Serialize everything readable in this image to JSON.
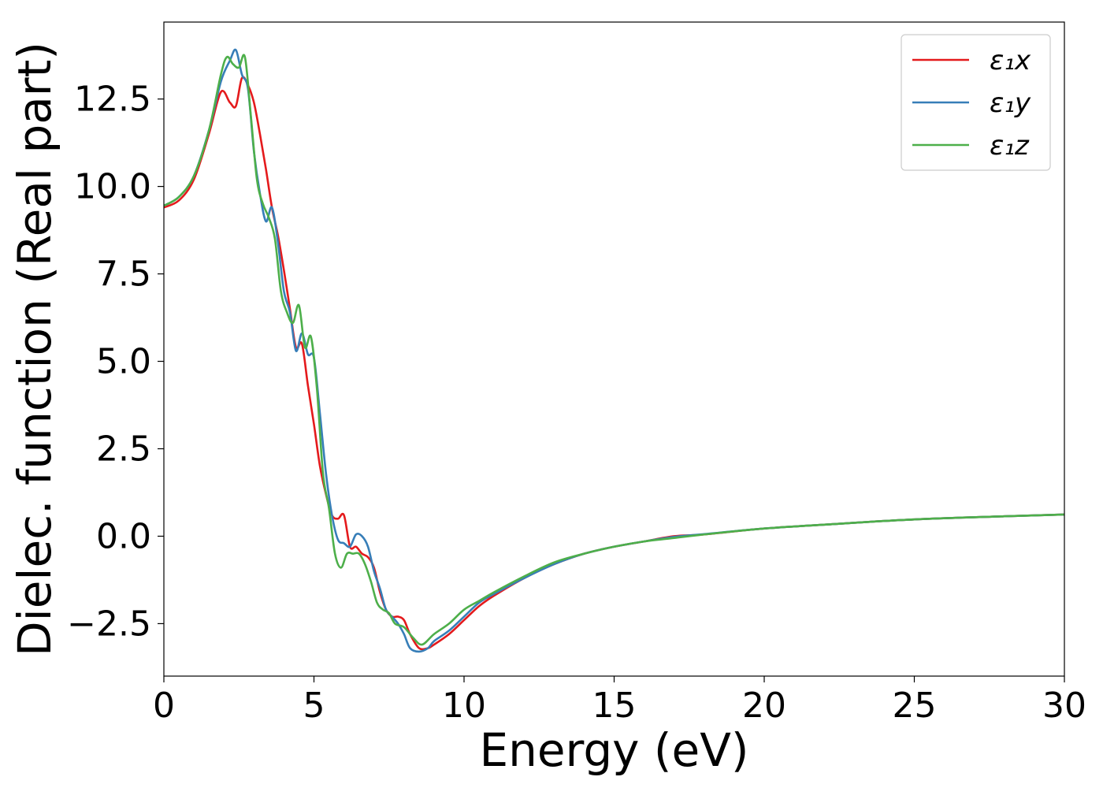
{
  "chart_data": {
    "type": "line",
    "xlabel": "Energy (eV)",
    "ylabel": "Dielec. function (Real part)",
    "xlim": [
      0,
      30
    ],
    "ylim": [
      -4.0,
      14.7
    ],
    "xticks": [
      0,
      5,
      10,
      15,
      20,
      25,
      30
    ],
    "yticks": [
      -2.5,
      0.0,
      2.5,
      5.0,
      7.5,
      10.0,
      12.5
    ],
    "xtick_labels": [
      "0",
      "5",
      "10",
      "15",
      "20",
      "25",
      "30"
    ],
    "ytick_labels": [
      "−2.5",
      "0.0",
      "2.5",
      "5.0",
      "7.5",
      "10.0",
      "12.5"
    ],
    "grid": false,
    "legend_position": "top-right",
    "series": [
      {
        "name": "ε₁x",
        "color": "#e41a1c",
        "x": [
          0,
          0.5,
          1.0,
          1.5,
          1.9,
          2.2,
          2.4,
          2.6,
          2.8,
          3.0,
          3.2,
          3.4,
          3.6,
          3.8,
          4.0,
          4.2,
          4.4,
          4.6,
          4.8,
          5.0,
          5.2,
          5.4,
          5.6,
          5.8,
          6.0,
          6.2,
          6.4,
          6.6,
          6.8,
          7.0,
          7.2,
          7.4,
          7.6,
          7.8,
          8.0,
          8.2,
          8.5,
          8.8,
          9.0,
          9.5,
          10.0,
          10.5,
          11.0,
          12.0,
          13.0,
          14.0,
          15.0,
          16.0,
          17.0,
          18.0,
          20.0,
          22.0,
          25.0,
          28.0,
          30.0
        ],
        "y": [
          9.4,
          9.6,
          10.2,
          11.5,
          12.7,
          12.4,
          12.3,
          13.1,
          12.9,
          12.4,
          11.5,
          10.5,
          9.4,
          8.6,
          7.6,
          6.5,
          5.4,
          5.5,
          4.3,
          3.2,
          2.0,
          1.2,
          0.6,
          0.5,
          0.6,
          -0.3,
          -0.3,
          -0.5,
          -0.6,
          -0.9,
          -1.6,
          -2.1,
          -2.3,
          -2.3,
          -2.4,
          -2.8,
          -3.2,
          -3.2,
          -3.1,
          -2.8,
          -2.4,
          -2.0,
          -1.7,
          -1.2,
          -0.8,
          -0.5,
          -0.3,
          -0.15,
          0.0,
          0.05,
          0.22,
          0.33,
          0.48,
          0.57,
          0.62
        ]
      },
      {
        "name": "ε₁y",
        "color": "#377eb8",
        "x": [
          0,
          0.5,
          1.0,
          1.5,
          1.9,
          2.2,
          2.4,
          2.6,
          2.8,
          3.0,
          3.2,
          3.4,
          3.6,
          3.8,
          4.0,
          4.2,
          4.4,
          4.6,
          4.8,
          5.0,
          5.2,
          5.4,
          5.6,
          5.8,
          6.0,
          6.2,
          6.4,
          6.6,
          6.8,
          7.0,
          7.2,
          7.4,
          7.6,
          7.8,
          8.0,
          8.2,
          8.5,
          8.8,
          9.0,
          9.5,
          10.0,
          10.5,
          11.0,
          12.0,
          13.0,
          14.0,
          15.0,
          16.0,
          17.0,
          18.0,
          20.0,
          22.0,
          25.0,
          28.0,
          30.0
        ],
        "y": [
          9.45,
          9.7,
          10.3,
          11.6,
          13.0,
          13.6,
          13.9,
          13.2,
          12.8,
          11.0,
          9.8,
          9.0,
          9.4,
          8.4,
          7.0,
          6.4,
          5.3,
          5.8,
          5.2,
          5.1,
          3.5,
          1.8,
          0.6,
          -0.1,
          -0.2,
          -0.3,
          0.05,
          0.0,
          -0.3,
          -1.0,
          -1.5,
          -2.1,
          -2.3,
          -2.5,
          -2.8,
          -3.2,
          -3.3,
          -3.2,
          -3.0,
          -2.7,
          -2.3,
          -1.9,
          -1.65,
          -1.2,
          -0.8,
          -0.5,
          -0.3,
          -0.15,
          -0.02,
          0.06,
          0.22,
          0.33,
          0.48,
          0.57,
          0.62
        ]
      },
      {
        "name": "ε₁z",
        "color": "#4daf4a",
        "x": [
          0,
          0.5,
          1.0,
          1.5,
          1.9,
          2.1,
          2.3,
          2.5,
          2.7,
          2.9,
          3.1,
          3.3,
          3.5,
          3.7,
          3.9,
          4.1,
          4.3,
          4.5,
          4.7,
          4.9,
          5.1,
          5.3,
          5.5,
          5.7,
          5.9,
          6.1,
          6.3,
          6.5,
          6.7,
          6.9,
          7.1,
          7.3,
          7.5,
          7.7,
          8.0,
          8.3,
          8.6,
          9.0,
          9.5,
          10.0,
          10.5,
          11.0,
          12.0,
          13.0,
          14.0,
          15.0,
          16.0,
          17.0,
          18.0,
          20.0,
          22.0,
          25.0,
          28.0,
          30.0
        ],
        "y": [
          9.45,
          9.7,
          10.3,
          11.6,
          13.2,
          13.7,
          13.5,
          13.4,
          13.7,
          12.0,
          10.2,
          9.5,
          9.1,
          8.5,
          7.0,
          6.4,
          6.1,
          6.6,
          5.4,
          5.7,
          4.2,
          1.8,
          0.8,
          -0.5,
          -0.9,
          -0.5,
          -0.5,
          -0.5,
          -0.8,
          -1.3,
          -1.9,
          -2.1,
          -2.2,
          -2.5,
          -2.6,
          -2.9,
          -3.1,
          -2.8,
          -2.5,
          -2.1,
          -1.85,
          -1.6,
          -1.15,
          -0.75,
          -0.5,
          -0.3,
          -0.15,
          -0.05,
          0.05,
          0.22,
          0.33,
          0.48,
          0.57,
          0.62
        ]
      }
    ]
  }
}
